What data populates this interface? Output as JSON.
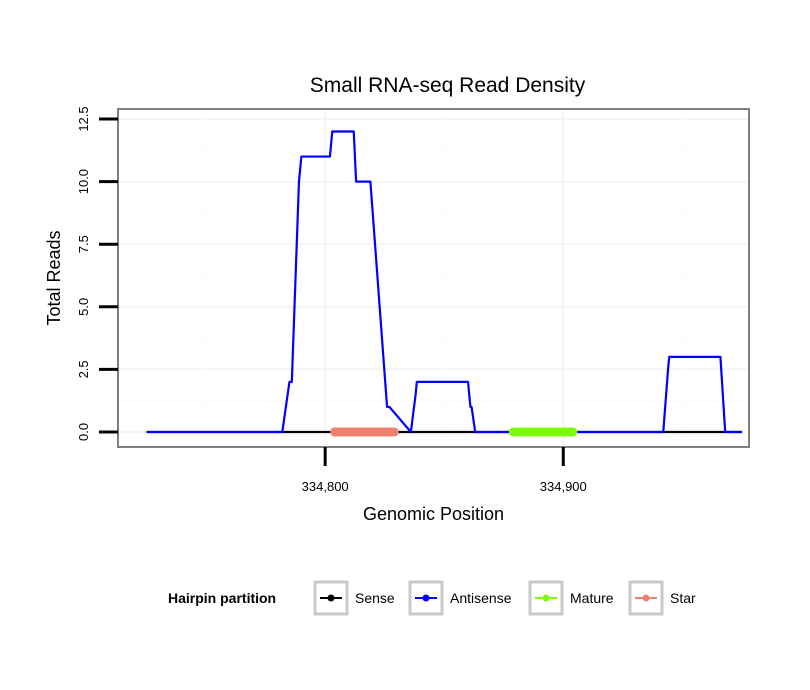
{
  "chart_data": {
    "type": "line",
    "title": "Small RNA-seq Read Density",
    "xlabel": "Genomic Position",
    "ylabel": "Total Reads",
    "xlim": [
      334713,
      334978
    ],
    "ylim": [
      -0.6,
      12.9
    ],
    "x_ticks": [
      334800,
      334900
    ],
    "x_tick_labels": [
      "334,800",
      "334,900"
    ],
    "y_ticks": [
      0,
      2.5,
      5,
      7.5,
      10,
      12.5
    ],
    "y_tick_labels": [
      "0.0",
      "2.5",
      "5.0",
      "7.5",
      "10.0",
      "12.5"
    ],
    "grid": true,
    "legend_position": "bottom",
    "legend_title": "Hairpin partition",
    "series": [
      {
        "name": "Sense",
        "color": "#000000",
        "x": [
          334725,
          334975
        ],
        "y": [
          0,
          0
        ]
      },
      {
        "name": "Antisense",
        "color": "#0000ff",
        "x": [
          334725,
          334782,
          334785,
          334786,
          334789,
          334790,
          334802,
          334803,
          334808,
          334809,
          334812,
          334813,
          334818,
          334819,
          334826,
          334827,
          334836,
          334838,
          334838.5,
          334860,
          334861,
          334861.5,
          334863,
          334942,
          334944,
          334944.5,
          334966,
          334968,
          334975
        ],
        "y": [
          0,
          0,
          2,
          2,
          10,
          11,
          11,
          12,
          12,
          12,
          12,
          10,
          10,
          10,
          1,
          1,
          0,
          1.5,
          2,
          2,
          1,
          1,
          0,
          0,
          2.5,
          3,
          3,
          0,
          0
        ]
      },
      {
        "name": "Mature",
        "color": "#7cfc00",
        "x": [
          334879,
          334904
        ],
        "y": [
          0,
          0
        ]
      },
      {
        "name": "Star",
        "color": "#f08070",
        "x": [
          334804,
          334829
        ],
        "y": [
          0,
          0
        ]
      }
    ]
  }
}
